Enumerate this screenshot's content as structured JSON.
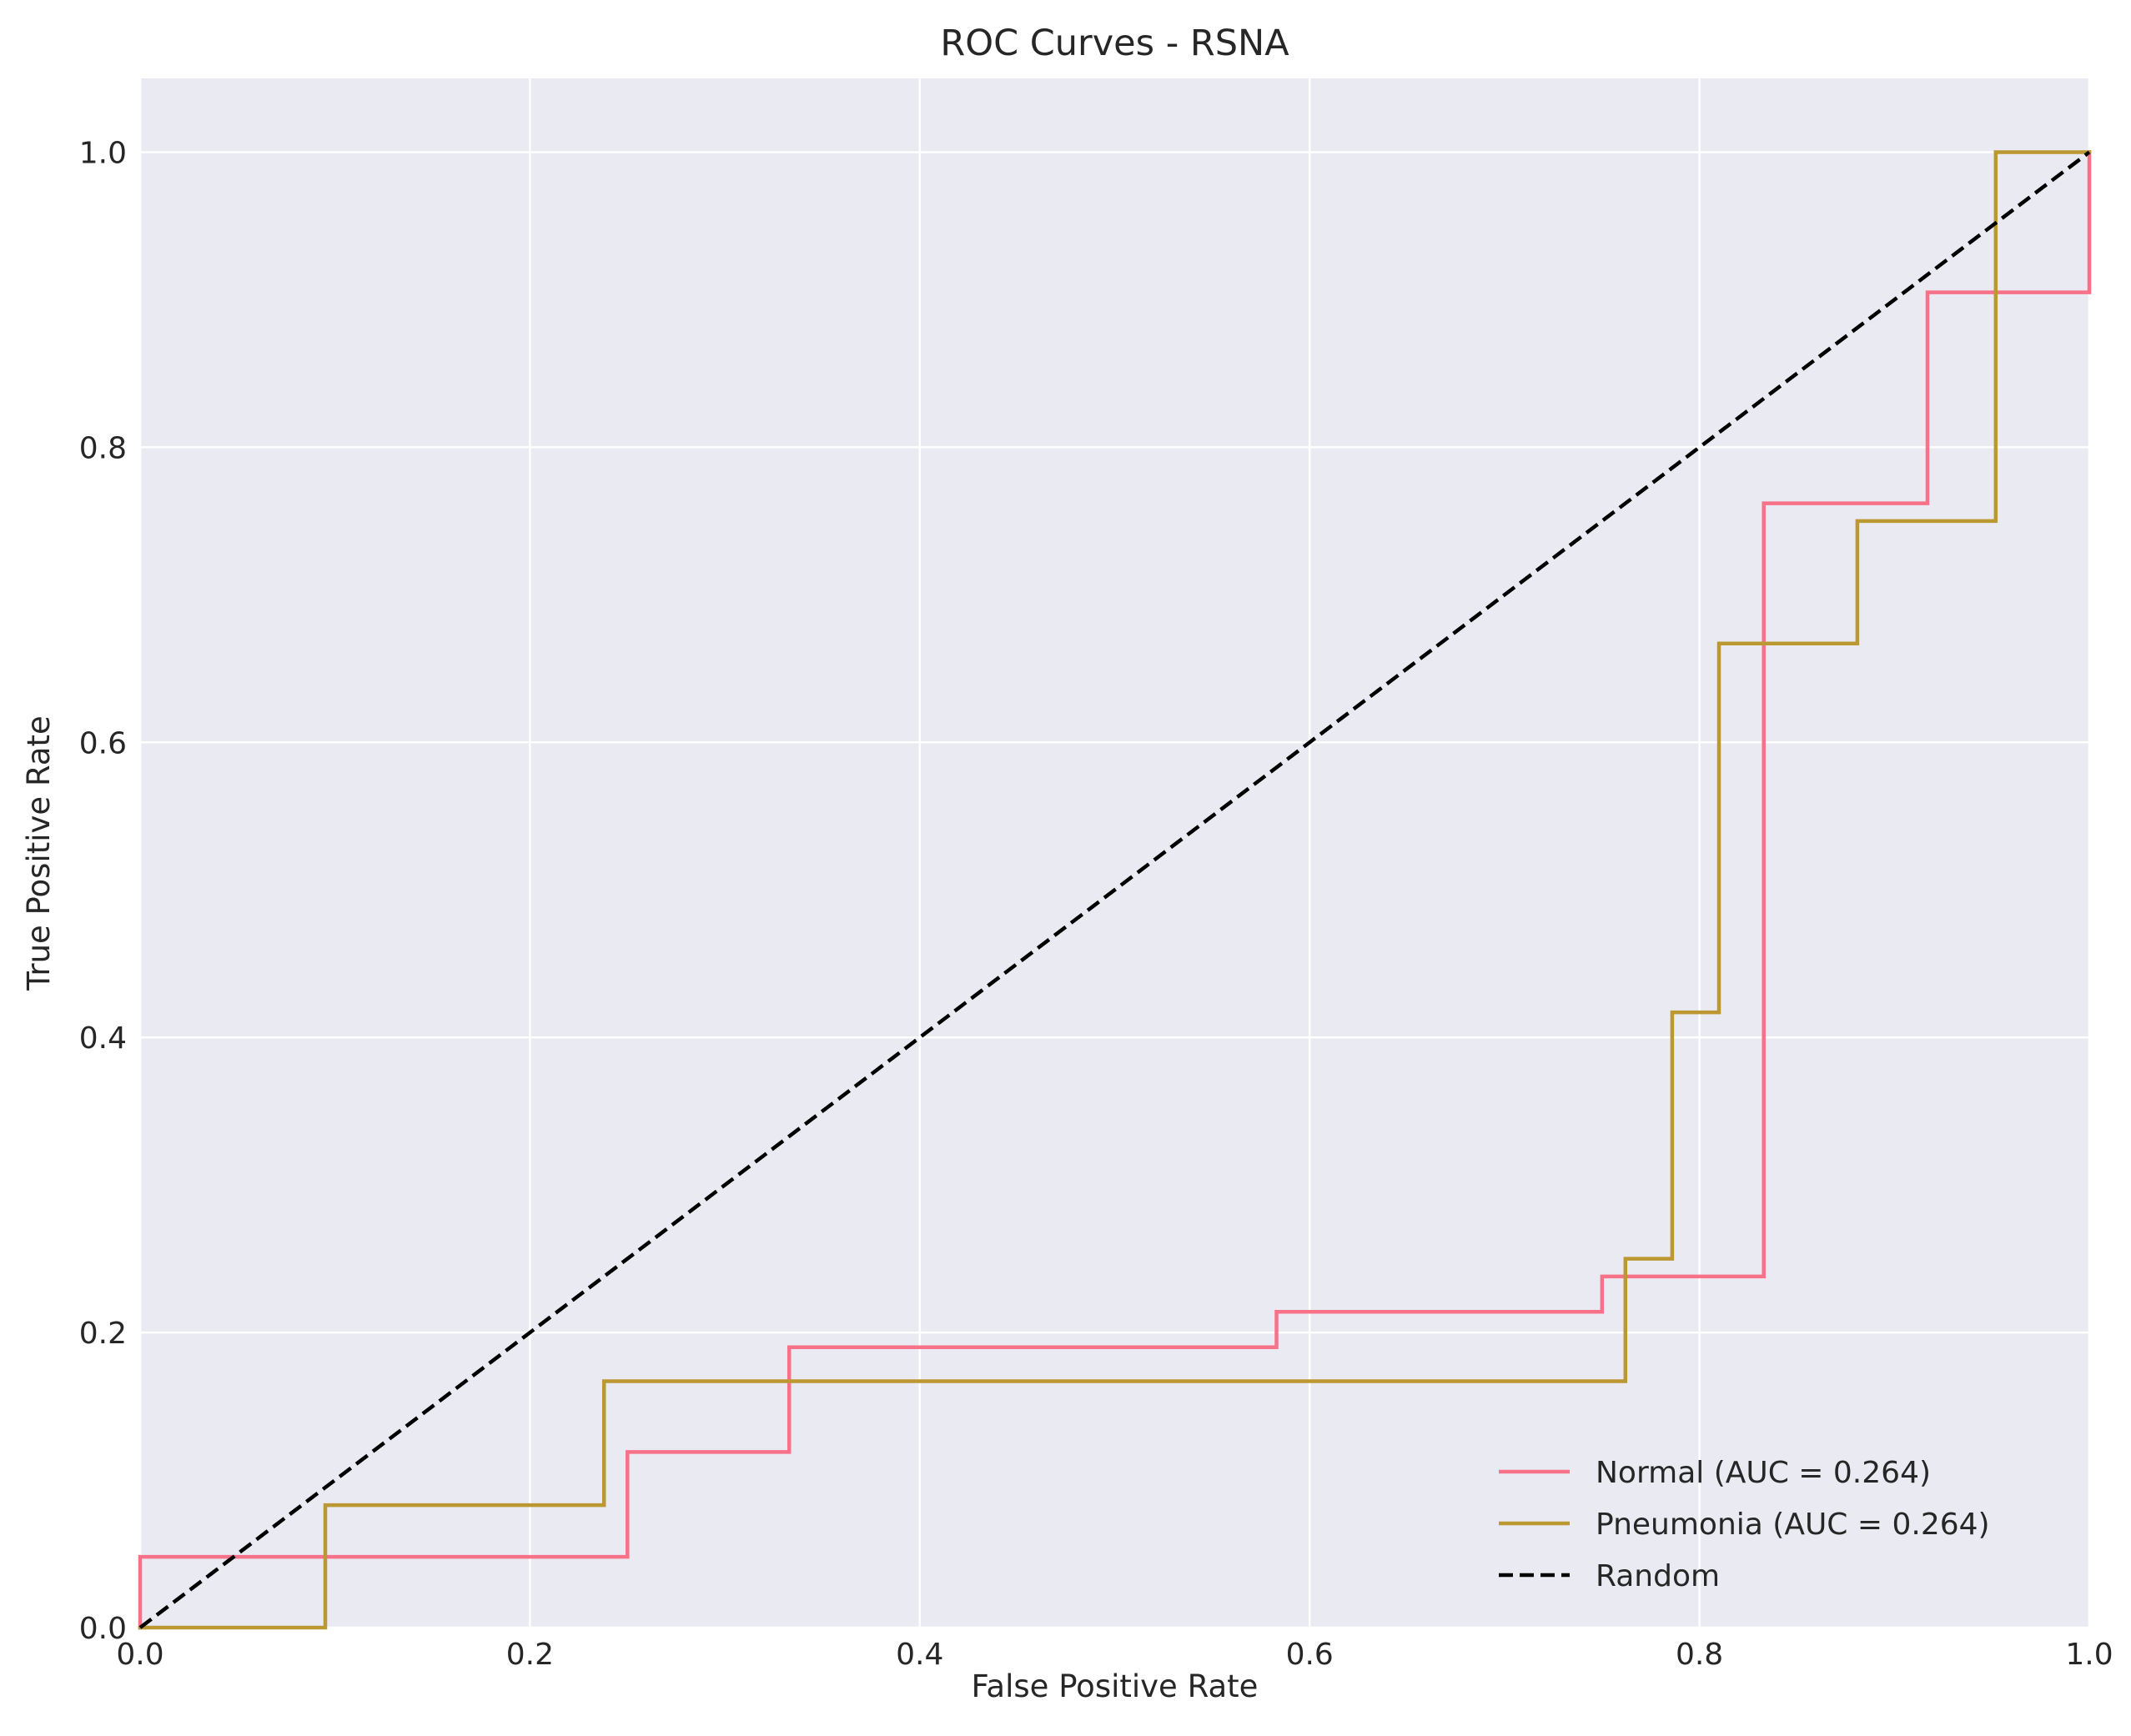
{
  "chart_data": {
    "type": "line",
    "title": "ROC Curves - RSNA",
    "xlabel": "False Positive Rate",
    "ylabel": "True Positive Rate",
    "xlim": [
      0.0,
      1.0
    ],
    "ylim": [
      0.0,
      1.05
    ],
    "x_ticks": [
      0.0,
      0.2,
      0.4,
      0.6,
      0.8,
      1.0
    ],
    "x_tick_labels": [
      "0.0",
      "0.2",
      "0.4",
      "0.6",
      "0.8",
      "1.0"
    ],
    "y_ticks": [
      0.0,
      0.2,
      0.4,
      0.6,
      0.8,
      1.0
    ],
    "y_tick_labels": [
      "0.0",
      "0.2",
      "0.4",
      "0.6",
      "0.8",
      "1.0"
    ],
    "grid": true,
    "legend_position": "lower-right",
    "background_color": "#eaeaf2",
    "series": [
      {
        "name": "Normal (AUC = 0.264)",
        "color": "#f77189",
        "style": "solid",
        "x": [
          0.0,
          0.0,
          0.25,
          0.25,
          0.333,
          0.333,
          0.583,
          0.583,
          0.75,
          0.75,
          0.833,
          0.833,
          0.917,
          0.917,
          1.0,
          1.0
        ],
        "y": [
          0.0,
          0.048,
          0.048,
          0.119,
          0.119,
          0.19,
          0.19,
          0.214,
          0.214,
          0.238,
          0.238,
          0.762,
          0.762,
          0.905,
          0.905,
          1.0
        ]
      },
      {
        "name": "Pneumonia (AUC = 0.264)",
        "color": "#bb9832",
        "style": "solid",
        "x": [
          0.0,
          0.095,
          0.095,
          0.238,
          0.238,
          0.762,
          0.762,
          0.786,
          0.786,
          0.81,
          0.81,
          0.881,
          0.881,
          0.952,
          0.952,
          1.0
        ],
        "y": [
          0.0,
          0.0,
          0.083,
          0.083,
          0.167,
          0.167,
          0.25,
          0.25,
          0.417,
          0.417,
          0.667,
          0.667,
          0.75,
          0.75,
          1.0,
          1.0
        ]
      },
      {
        "name": "Random",
        "color": "#000000",
        "style": "dashed",
        "x": [
          0.0,
          1.0
        ],
        "y": [
          0.0,
          1.0
        ]
      }
    ]
  }
}
